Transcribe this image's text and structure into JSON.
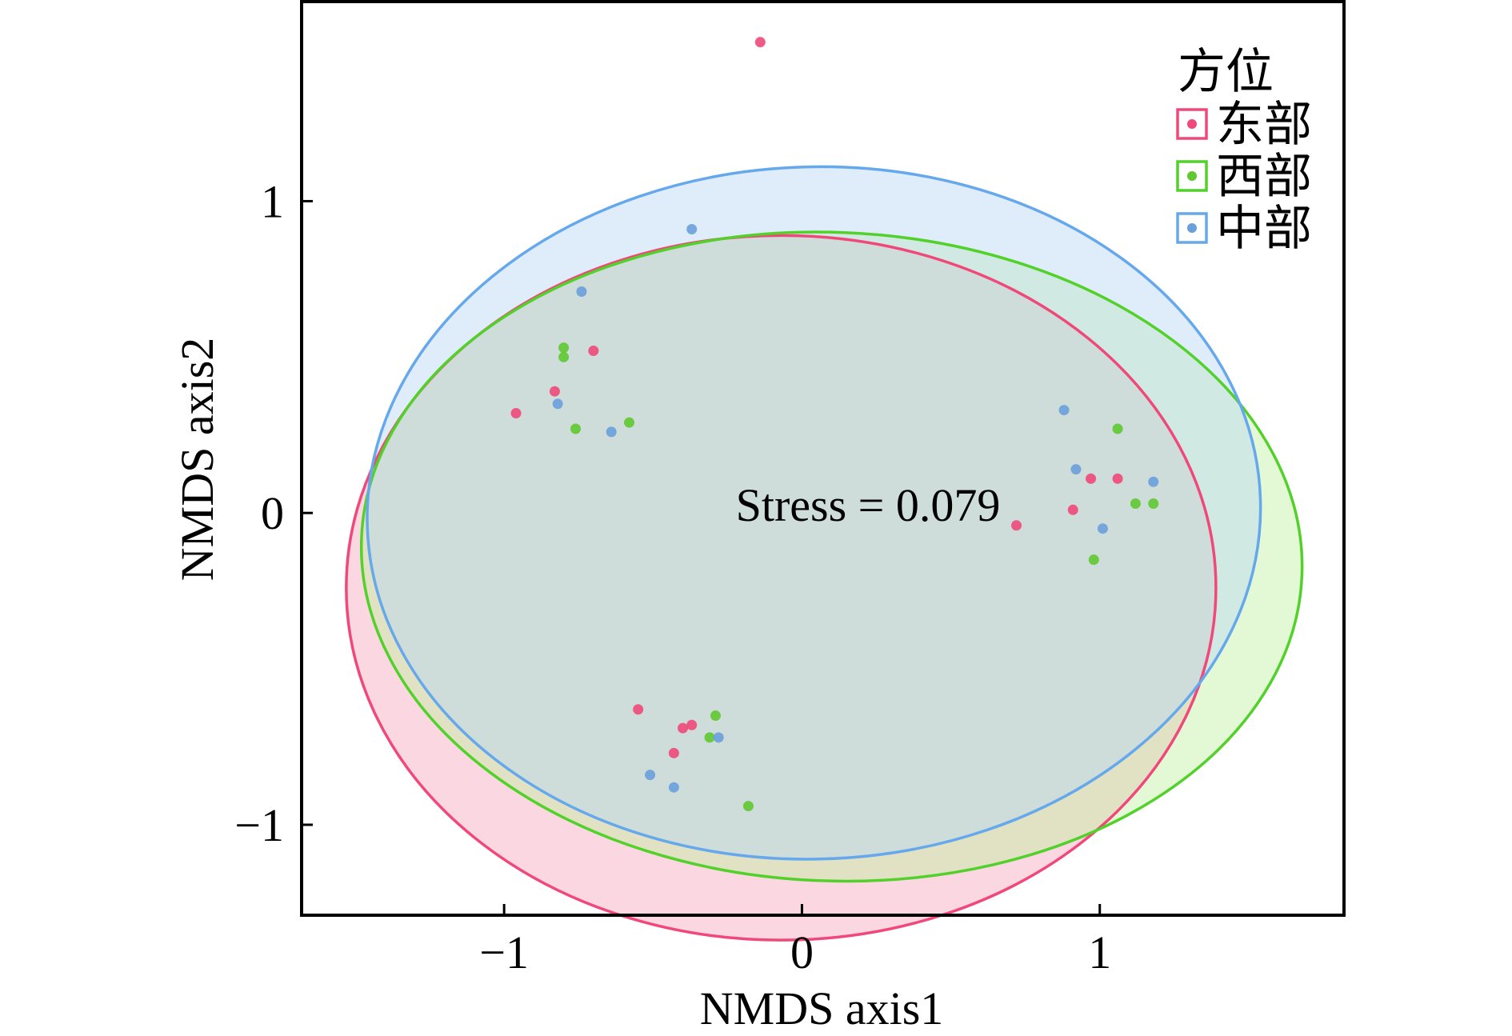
{
  "chart_data": {
    "type": "scatter",
    "xlabel": "NMDS axis1",
    "ylabel": "NMDS axis2",
    "xlim": [
      -1.68,
      1.82
    ],
    "ylim": [
      -1.29,
      1.64
    ],
    "xticks": [
      -1,
      0,
      1
    ],
    "yticks": [
      -1,
      0,
      1
    ],
    "xtick_labels": [
      "−1",
      "0",
      "1"
    ],
    "ytick_labels": [
      "−1",
      "0",
      "1"
    ],
    "grid": false,
    "legend": {
      "title": "方位",
      "position": "top-right"
    },
    "annotation": "Stress = 0.079",
    "series": [
      {
        "name": "东部",
        "point_color": "#f0487a",
        "line_color": "#f0487a",
        "fill_color": "#f7a6bf",
        "points": [
          [
            -0.14,
            1.51
          ],
          [
            -0.7,
            0.52
          ],
          [
            -0.83,
            0.39
          ],
          [
            -0.96,
            0.32
          ],
          [
            -0.55,
            -0.63
          ],
          [
            -0.4,
            -0.69
          ],
          [
            -0.37,
            -0.68
          ],
          [
            -0.43,
            -0.77
          ],
          [
            0.72,
            -0.04
          ],
          [
            0.97,
            0.11
          ],
          [
            1.06,
            0.11
          ],
          [
            0.91,
            0.01
          ]
        ],
        "ellipse": {
          "center": [
            -0.07,
            -0.24
          ],
          "radii": [
            1.46,
            1.13
          ],
          "rotation": 0
        }
      },
      {
        "name": "西部",
        "point_color": "#5fc830",
        "line_color": "#52d12a",
        "fill_color": "#c2f0a0",
        "points": [
          [
            -0.8,
            0.53
          ],
          [
            -0.8,
            0.5
          ],
          [
            -0.76,
            0.27
          ],
          [
            -0.58,
            0.29
          ],
          [
            -0.29,
            -0.65
          ],
          [
            -0.31,
            -0.72
          ],
          [
            -0.18,
            -0.94
          ],
          [
            1.06,
            0.27
          ],
          [
            1.12,
            0.03
          ],
          [
            1.18,
            0.03
          ],
          [
            0.98,
            -0.15
          ]
        ],
        "ellipse": {
          "center": [
            0.1,
            -0.14
          ],
          "radii": [
            1.58,
            1.04
          ],
          "rotation": -0.04
        }
      },
      {
        "name": "中部",
        "point_color": "#6aa0da",
        "line_color": "#66a8ec",
        "fill_color": "#b9d8f4",
        "points": [
          [
            -0.37,
            0.91
          ],
          [
            -0.74,
            0.71
          ],
          [
            -0.82,
            0.35
          ],
          [
            -0.64,
            0.26
          ],
          [
            -0.28,
            -0.72
          ],
          [
            -0.51,
            -0.84
          ],
          [
            -0.43,
            -0.88
          ],
          [
            0.88,
            0.33
          ],
          [
            0.92,
            0.14
          ],
          [
            1.18,
            0.1
          ],
          [
            1.01,
            -0.05
          ]
        ],
        "ellipse": {
          "center": [
            0.04,
            0.0
          ],
          "radii": [
            1.5,
            1.11
          ],
          "rotation": 0.03
        }
      }
    ]
  }
}
